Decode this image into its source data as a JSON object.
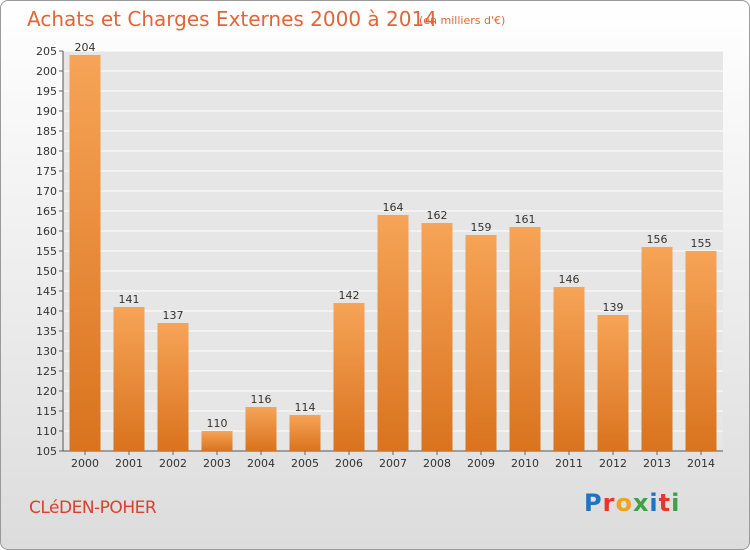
{
  "header": {
    "title": "Achats et Charges Externes 2000 à 2014",
    "subtitle": "(en milliers d'€)"
  },
  "footer": {
    "commune": "CLéDEN-POHER",
    "logo": "Proxiti",
    "logo_colors": [
      "#1f74c1",
      "#e8362d",
      "#f2a31d",
      "#3aa343",
      "#1f74c1",
      "#e8362d",
      "#3aa343"
    ]
  },
  "colors": {
    "bar_top": "#f6a457",
    "bar_bottom": "#d9731e",
    "text": "#333333",
    "title": "#e0663a"
  },
  "chart_data": {
    "type": "bar",
    "categories": [
      "2000",
      "2001",
      "2002",
      "2003",
      "2004",
      "2005",
      "2006",
      "2007",
      "2008",
      "2009",
      "2010",
      "2011",
      "2012",
      "2013",
      "2014"
    ],
    "values": [
      204,
      141,
      137,
      110,
      116,
      114,
      142,
      164,
      162,
      159,
      161,
      146,
      139,
      156,
      155
    ],
    "ylim": [
      105,
      205
    ],
    "ytick_step": 5,
    "grid": true,
    "data_labels": true
  }
}
